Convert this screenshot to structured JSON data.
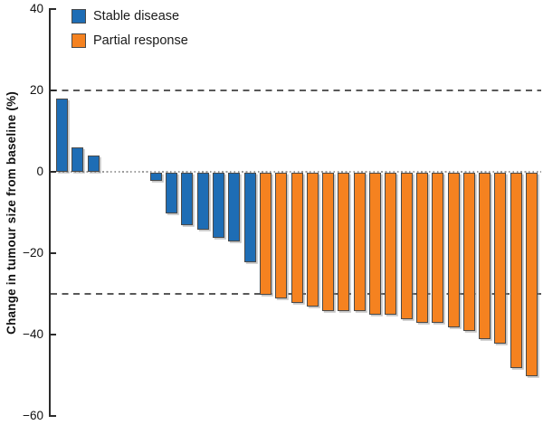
{
  "figure": {
    "background": "#ffffff",
    "axis_color": "#2b2b2b"
  },
  "chart_data": {
    "type": "bar",
    "subtype": "waterfall",
    "title": "",
    "xlabel": "",
    "ylabel": "Change in tumour size from baseline (%)",
    "ylim": [
      -60,
      40
    ],
    "grid": false,
    "legend_position": "top-left",
    "yticks": [
      {
        "v": 40,
        "label": "40"
      },
      {
        "v": 20,
        "label": "20"
      },
      {
        "v": 0,
        "label": "0"
      },
      {
        "v": -20,
        "label": "−20"
      },
      {
        "v": -40,
        "label": "−40"
      },
      {
        "v": -60,
        "label": "−60"
      }
    ],
    "reference_lines": [
      {
        "v": 20,
        "style": "dashed",
        "color": "#595959"
      },
      {
        "v": -30,
        "style": "dashed",
        "color": "#595959"
      },
      {
        "v": 0,
        "style": "dotted",
        "color": "#9a9a9a"
      }
    ],
    "legend": [
      {
        "key": "stable",
        "label": "Stable disease",
        "color": "#1E6DB5"
      },
      {
        "key": "partial",
        "label": "Partial response",
        "color": "#F58220"
      }
    ],
    "bars": [
      {
        "value": 18,
        "group": "stable"
      },
      {
        "value": 6,
        "group": "stable"
      },
      {
        "value": 4,
        "group": "stable"
      },
      {
        "value": 0,
        "group": "stable"
      },
      {
        "value": 0,
        "group": "stable"
      },
      {
        "value": 0,
        "group": "stable"
      },
      {
        "value": -2,
        "group": "stable"
      },
      {
        "value": -10,
        "group": "stable"
      },
      {
        "value": -13,
        "group": "stable"
      },
      {
        "value": -14,
        "group": "stable"
      },
      {
        "value": -16,
        "group": "stable"
      },
      {
        "value": -17,
        "group": "stable"
      },
      {
        "value": -22,
        "group": "stable"
      },
      {
        "value": -30,
        "group": "partial"
      },
      {
        "value": -31,
        "group": "partial"
      },
      {
        "value": -32,
        "group": "partial"
      },
      {
        "value": -33,
        "group": "partial"
      },
      {
        "value": -34,
        "group": "partial"
      },
      {
        "value": -34,
        "group": "partial"
      },
      {
        "value": -34,
        "group": "partial"
      },
      {
        "value": -35,
        "group": "partial"
      },
      {
        "value": -35,
        "group": "partial"
      },
      {
        "value": -36,
        "group": "partial"
      },
      {
        "value": -37,
        "group": "partial"
      },
      {
        "value": -37,
        "group": "partial"
      },
      {
        "value": -38,
        "group": "partial"
      },
      {
        "value": -39,
        "group": "partial"
      },
      {
        "value": -41,
        "group": "partial"
      },
      {
        "value": -42,
        "group": "partial"
      },
      {
        "value": -48,
        "group": "partial"
      },
      {
        "value": -50,
        "group": "partial"
      }
    ]
  }
}
